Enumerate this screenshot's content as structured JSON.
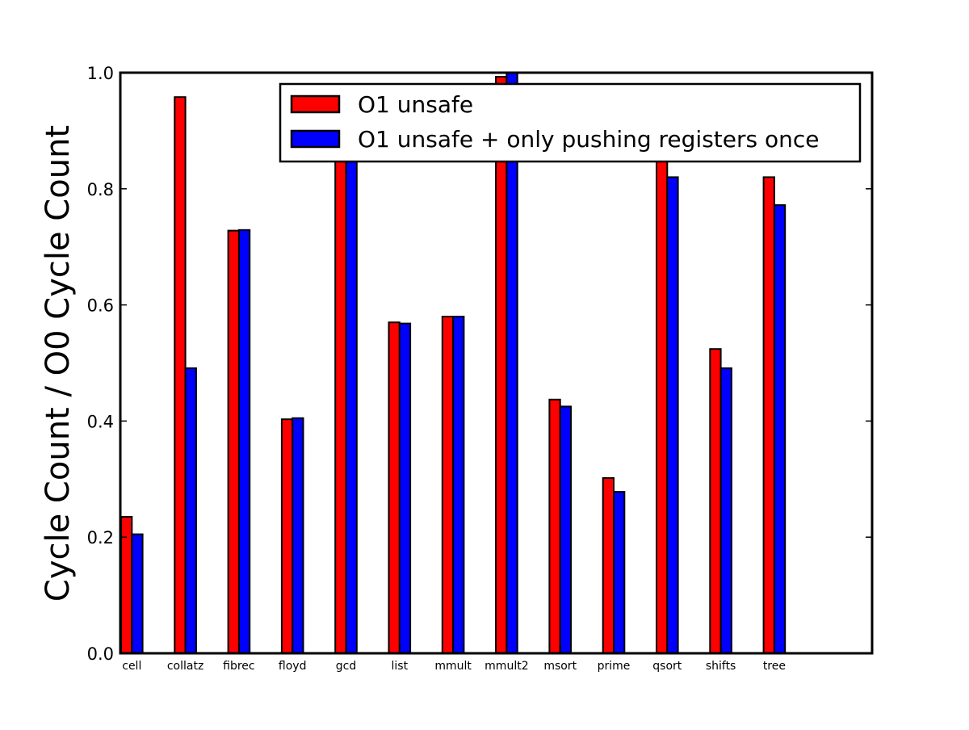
{
  "chart_data": {
    "type": "bar",
    "title": "",
    "xlabel": "",
    "ylabel": "Cycle Count / O0 Cycle Count",
    "ylim": [
      0,
      1.0
    ],
    "yticks": [
      "0.0",
      "0.2",
      "0.4",
      "0.6",
      "0.8",
      "1.0"
    ],
    "categories": [
      "cell",
      "collatz",
      "fibrec",
      "floyd",
      "gcd",
      "list",
      "mmult",
      "mmult2",
      "msort",
      "prime",
      "qsort",
      "shifts",
      "tree"
    ],
    "series": [
      {
        "name": "O1 unsafe",
        "color": "#ff0000",
        "values": [
          0.235,
          0.958,
          0.728,
          0.403,
          0.905,
          0.57,
          0.58,
          0.993,
          0.437,
          0.302,
          0.88,
          0.524,
          0.82
        ]
      },
      {
        "name": "O1 unsafe + only pushing registers once",
        "color": "#0000ff",
        "values": [
          0.205,
          0.491,
          0.729,
          0.405,
          0.895,
          0.568,
          0.58,
          1.0,
          0.425,
          0.278,
          0.82,
          0.491,
          0.772
        ]
      }
    ],
    "grid": false,
    "legend_position": "top-right"
  }
}
